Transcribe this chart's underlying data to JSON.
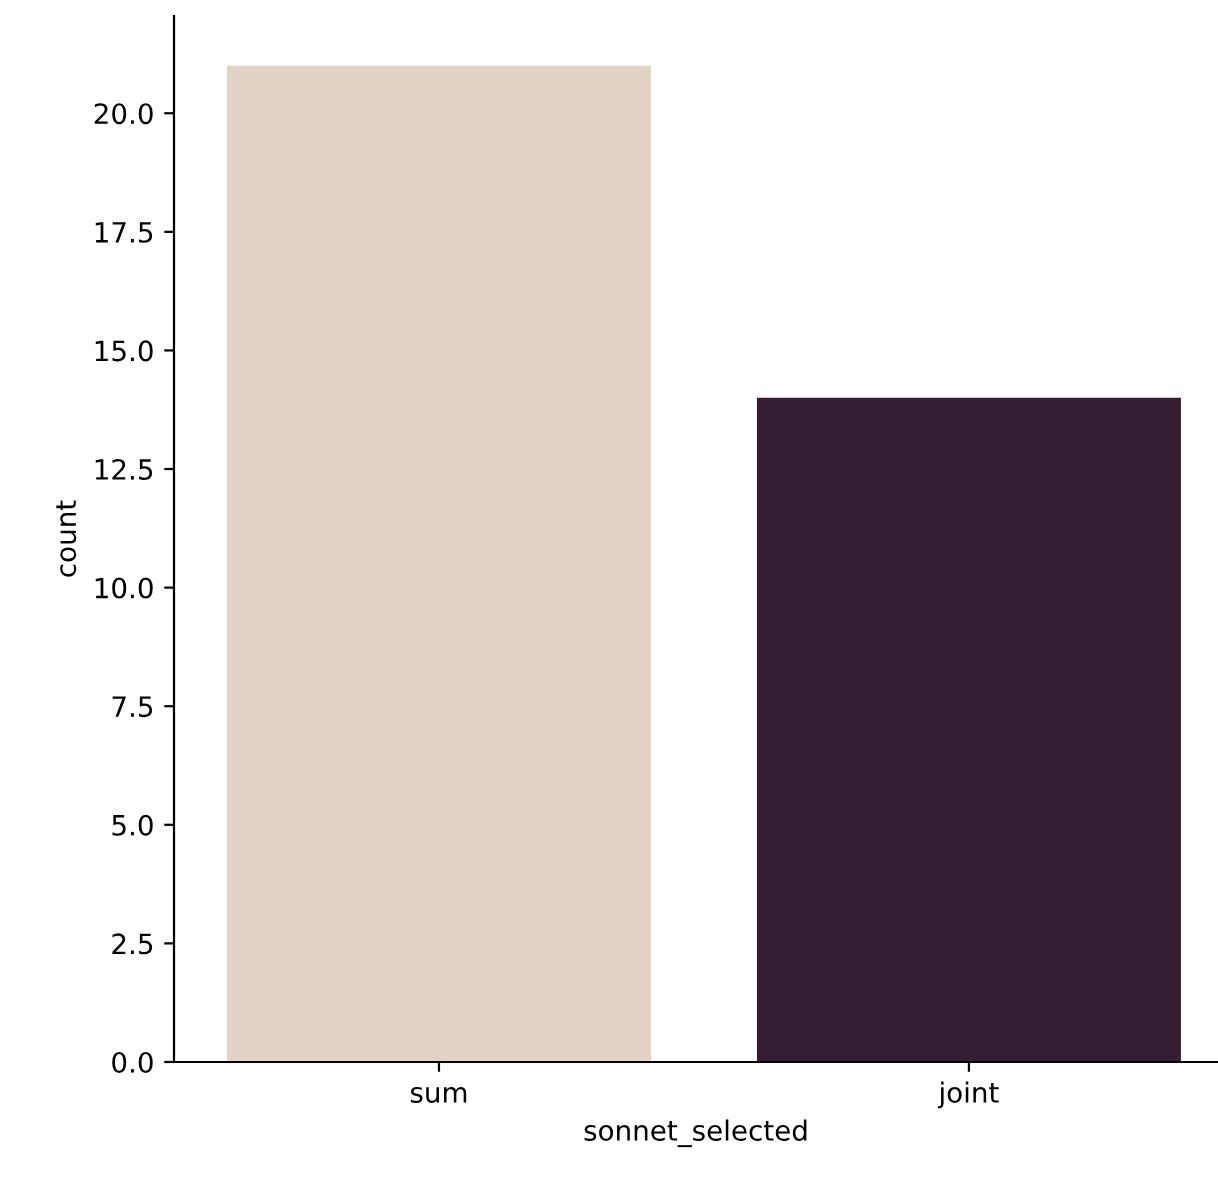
{
  "chart_data": {
    "type": "bar",
    "xlabel": "sonnet_selected",
    "ylabel": "count",
    "categories": [
      "sum",
      "joint"
    ],
    "values": [
      21,
      14
    ],
    "colors": [
      "#e2d4c4",
      "#351d32"
    ],
    "ylim": [
      0,
      22.05
    ],
    "yticks": [
      {
        "value": 0,
        "label": "0.0"
      },
      {
        "value": 2.5,
        "label": "2.5"
      },
      {
        "value": 5,
        "label": "5.0"
      },
      {
        "value": 7.5,
        "label": "7.5"
      },
      {
        "value": 10,
        "label": "10.0"
      },
      {
        "value": 12.5,
        "label": "12.5"
      },
      {
        "value": 15,
        "label": "15.0"
      },
      {
        "value": 17.5,
        "label": "17.5"
      },
      {
        "value": 20,
        "label": "20.0"
      }
    ],
    "grid": false,
    "legend": false
  }
}
